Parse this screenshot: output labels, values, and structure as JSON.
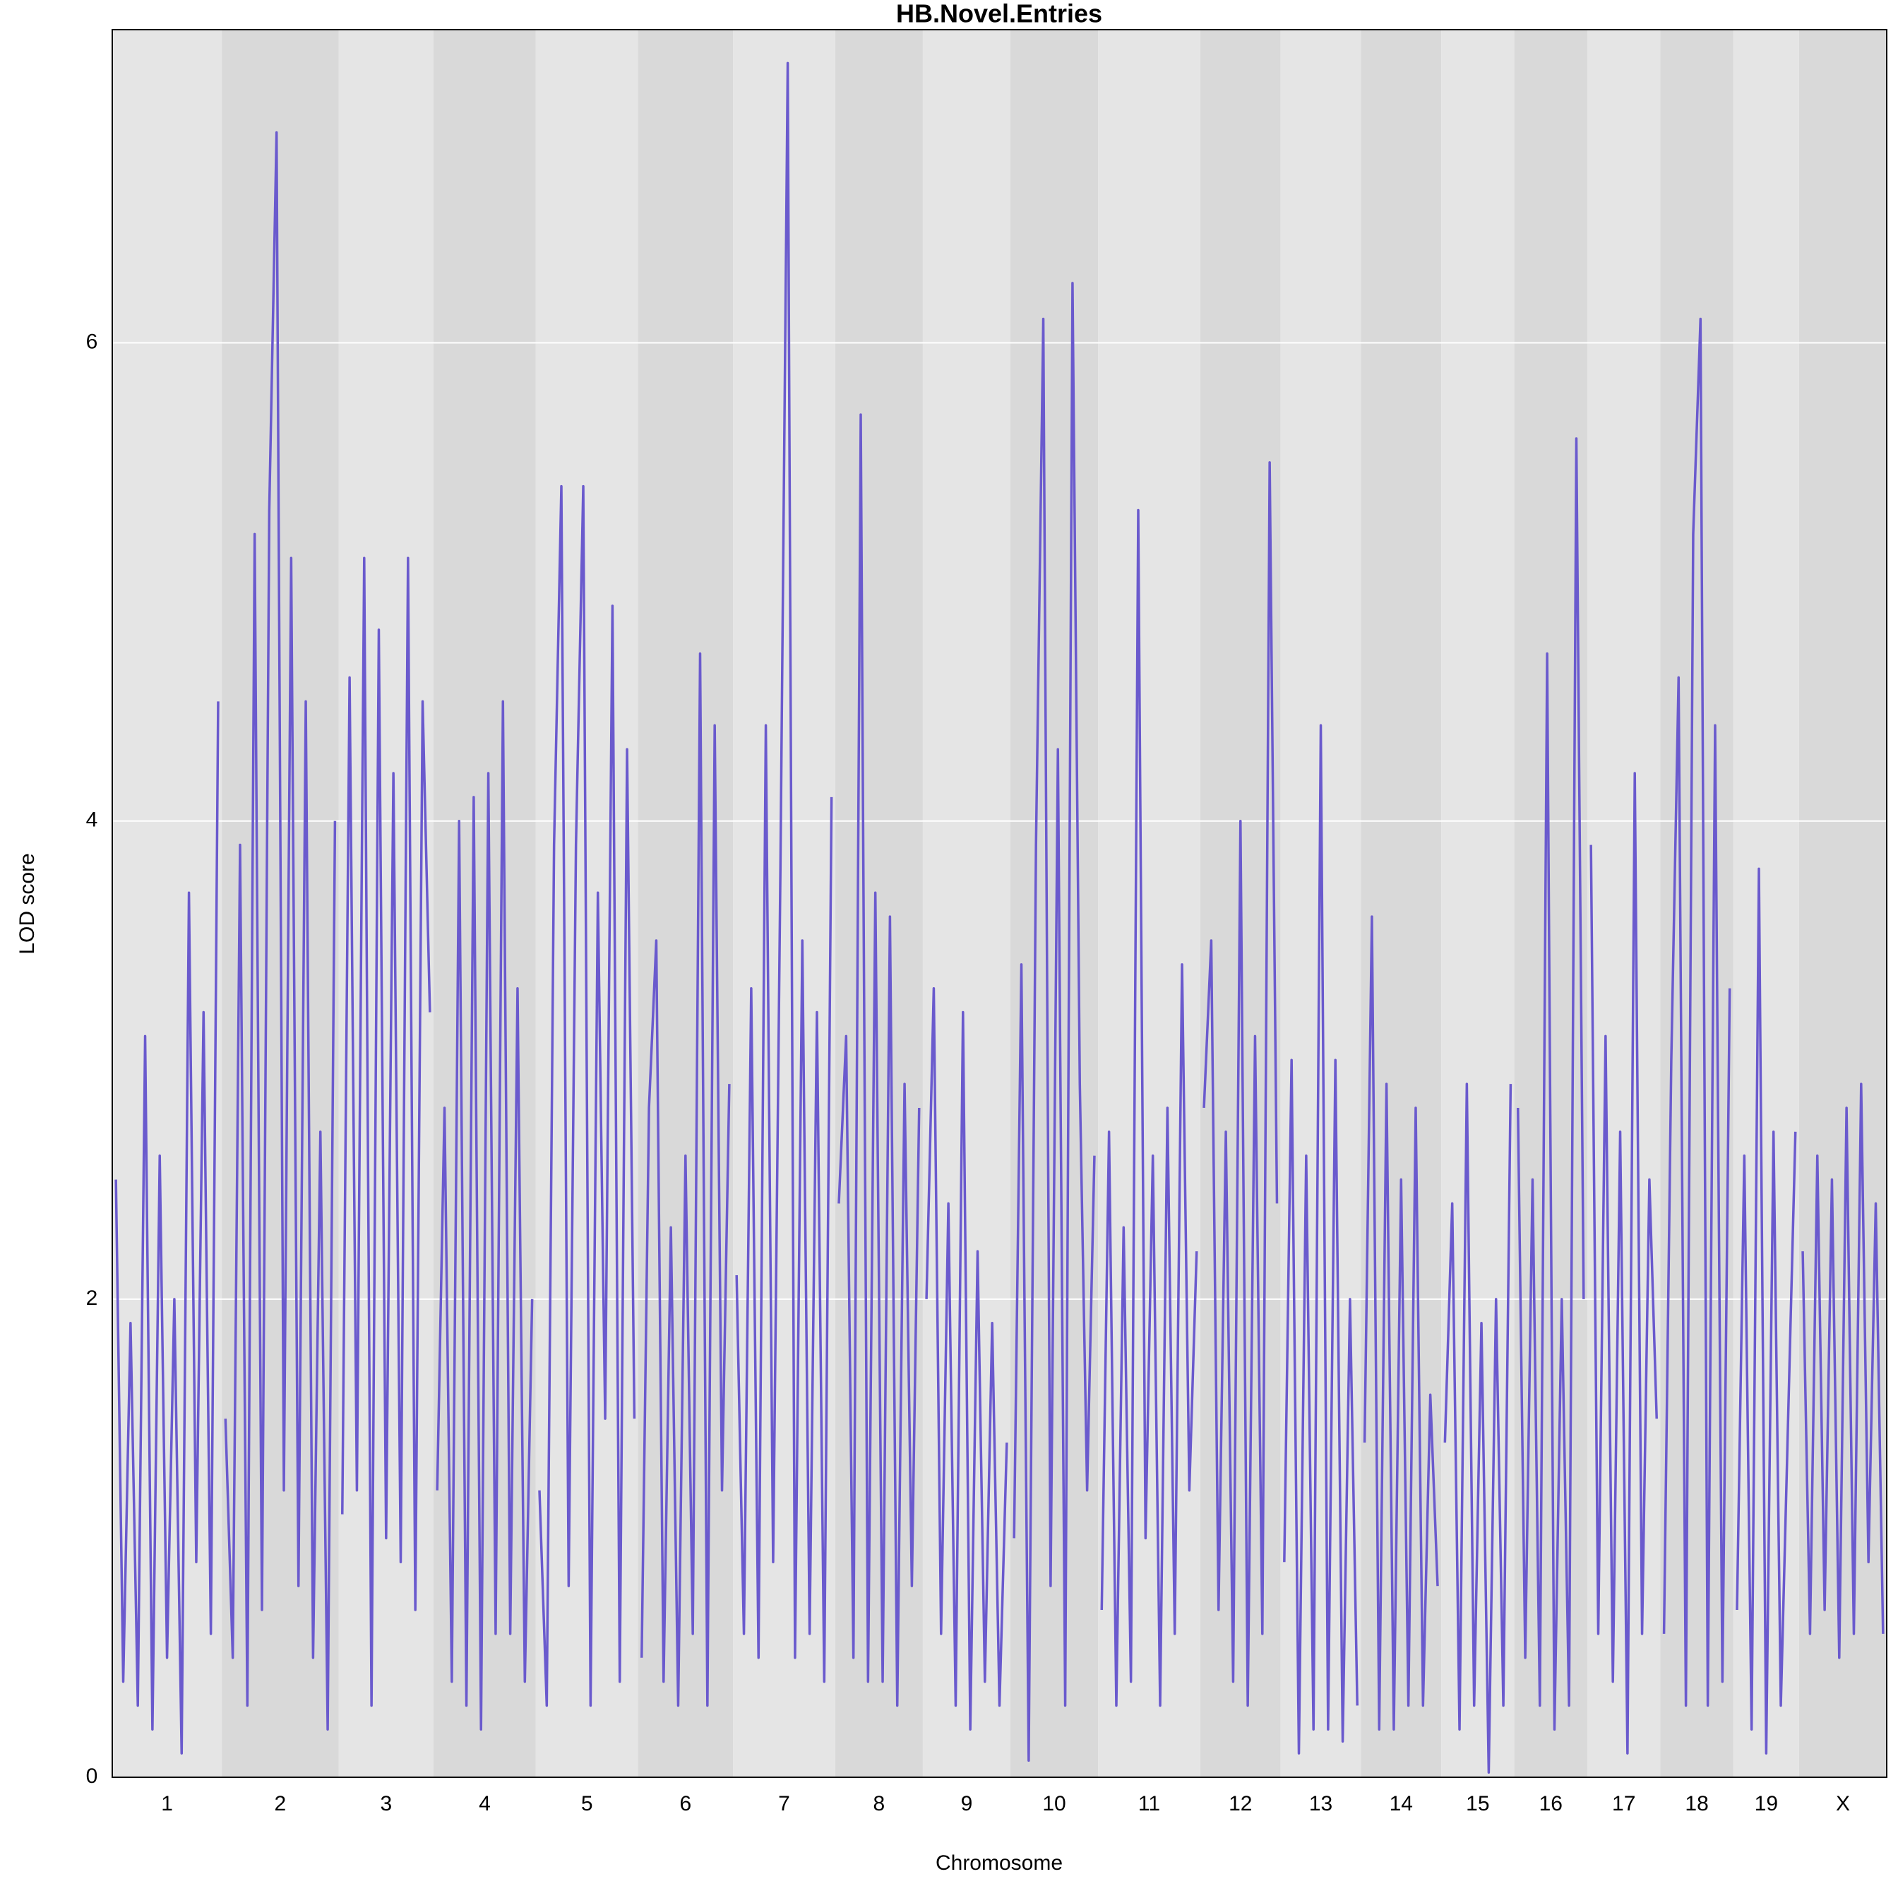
{
  "chart_data": {
    "type": "line",
    "title": "HB.Novel.Entries",
    "x_label": "Chromosome",
    "y_label": "LOD score",
    "categories": [
      "1",
      "2",
      "3",
      "4",
      "5",
      "6",
      "7",
      "8",
      "9",
      "10",
      "11",
      "12",
      "13",
      "14",
      "15",
      "16",
      "17",
      "18",
      "19",
      "X"
    ],
    "values": [
      [
        2.5,
        0.4,
        1.9,
        0.3,
        3.1,
        0.2,
        2.6,
        0.5,
        2.0,
        0.1,
        3.7,
        0.9,
        3.2,
        0.6,
        4.5
      ],
      [
        1.5,
        0.5,
        3.9,
        0.3,
        5.2,
        0.7,
        5.3,
        6.88,
        1.2,
        5.1,
        0.8,
        4.5,
        0.5,
        2.7,
        0.2,
        4.0
      ],
      [
        1.1,
        4.6,
        1.2,
        5.1,
        0.3,
        4.8,
        1.0,
        4.2,
        0.9,
        5.1,
        0.7,
        4.5,
        3.2
      ],
      [
        1.2,
        2.8,
        0.4,
        4.0,
        0.3,
        4.1,
        0.2,
        4.2,
        0.6,
        4.5,
        0.6,
        3.3,
        0.4,
        2.0
      ],
      [
        1.2,
        0.3,
        3.9,
        5.4,
        0.8,
        3.9,
        5.4,
        0.3,
        3.7,
        1.5,
        4.9,
        0.4,
        4.3,
        1.5
      ],
      [
        0.5,
        2.8,
        3.5,
        0.4,
        2.3,
        0.3,
        2.6,
        0.6,
        4.7,
        0.3,
        4.4,
        1.2,
        2.9
      ],
      [
        2.1,
        0.6,
        3.3,
        0.5,
        4.4,
        0.9,
        3.8,
        7.17,
        0.5,
        3.5,
        0.6,
        3.2,
        0.4,
        4.1
      ],
      [
        2.4,
        3.1,
        0.5,
        5.7,
        0.4,
        3.7,
        0.4,
        3.6,
        0.3,
        2.9,
        0.8,
        2.8
      ],
      [
        2.0,
        3.3,
        0.6,
        2.4,
        0.3,
        3.2,
        0.2,
        2.2,
        0.4,
        1.9,
        0.3,
        1.4
      ],
      [
        1.0,
        3.4,
        0.07,
        3.9,
        6.1,
        0.8,
        4.3,
        0.3,
        6.25,
        2.9,
        1.2,
        2.6
      ],
      [
        0.7,
        2.7,
        0.3,
        2.3,
        0.4,
        5.3,
        1.0,
        2.6,
        0.3,
        2.8,
        0.6,
        3.4,
        1.2,
        2.2
      ],
      [
        2.8,
        3.5,
        0.7,
        2.7,
        0.4,
        4.0,
        0.3,
        3.1,
        0.6,
        5.5,
        2.4
      ],
      [
        0.9,
        3.0,
        0.1,
        2.6,
        0.2,
        4.4,
        0.2,
        3.0,
        0.15,
        2.0,
        0.3
      ],
      [
        1.4,
        3.6,
        0.2,
        2.9,
        0.2,
        2.5,
        0.3,
        2.8,
        0.3,
        1.6,
        0.8
      ],
      [
        1.4,
        2.4,
        0.2,
        2.9,
        0.3,
        1.9,
        0.02,
        2.0,
        0.3,
        2.9
      ],
      [
        2.8,
        0.5,
        2.5,
        0.3,
        4.7,
        0.2,
        2.0,
        0.3,
        5.6,
        2.0
      ],
      [
        3.9,
        0.6,
        3.1,
        0.4,
        2.7,
        0.1,
        4.2,
        0.6,
        2.5,
        1.5
      ],
      [
        0.6,
        3.0,
        4.6,
        0.3,
        5.2,
        6.1,
        0.3,
        4.4,
        0.4,
        3.3
      ],
      [
        0.7,
        2.6,
        0.2,
        3.8,
        0.1,
        2.7,
        0.3,
        1.5,
        2.7
      ],
      [
        2.2,
        0.6,
        2.6,
        0.7,
        2.5,
        0.5,
        2.8,
        0.6,
        2.9,
        0.9,
        2.4,
        0.6
      ]
    ],
    "color": "#6a5acd",
    "band_colors": [
      "#e5e5e5",
      "#d9d9d9"
    ],
    "ylim": [
      0,
      7.31
    ],
    "yticks": [
      0,
      2,
      4,
      6
    ],
    "grid": true
  }
}
